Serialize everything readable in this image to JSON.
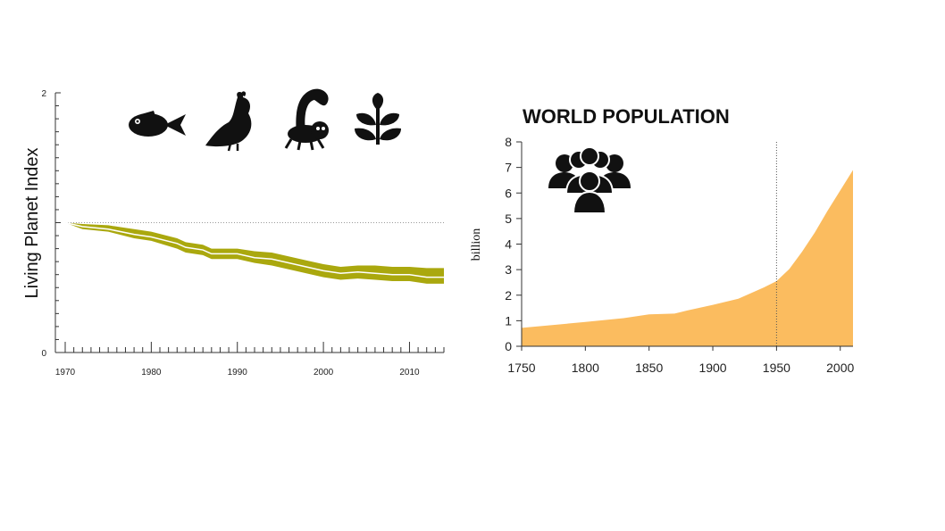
{
  "chart_data": [
    {
      "type": "area",
      "title": "",
      "ylabel": "Living Planet Index",
      "xlabel": "",
      "xlim": [
        1970,
        2014
      ],
      "ylim": [
        0,
        2
      ],
      "x_ticks": [
        1970,
        1980,
        1990,
        2000,
        2010
      ],
      "y_ticks": [
        0,
        2
      ],
      "baseline": 1,
      "grid": false,
      "icons": [
        "fish-icon",
        "quail-icon",
        "lemur-icon",
        "plant-icon"
      ],
      "band_color": "#aaa80e",
      "line_color": "#ffffff",
      "x": [
        1970,
        1972,
        1975,
        1978,
        1980,
        1983,
        1984,
        1986,
        1987,
        1988,
        1990,
        1992,
        1994,
        1996,
        1998,
        2000,
        2002,
        2004,
        2006,
        2008,
        2010,
        2012,
        2014
      ],
      "index": [
        1.0,
        0.97,
        0.95,
        0.91,
        0.89,
        0.84,
        0.81,
        0.79,
        0.76,
        0.76,
        0.76,
        0.73,
        0.72,
        0.69,
        0.66,
        0.63,
        0.61,
        0.62,
        0.61,
        0.6,
        0.6,
        0.58,
        0.58
      ],
      "upper": [
        1.0,
        0.99,
        0.98,
        0.95,
        0.93,
        0.88,
        0.85,
        0.83,
        0.8,
        0.8,
        0.8,
        0.78,
        0.77,
        0.74,
        0.71,
        0.68,
        0.66,
        0.67,
        0.67,
        0.66,
        0.66,
        0.65,
        0.65
      ],
      "lower": [
        1.0,
        0.95,
        0.93,
        0.88,
        0.86,
        0.8,
        0.77,
        0.75,
        0.72,
        0.72,
        0.72,
        0.69,
        0.67,
        0.64,
        0.61,
        0.58,
        0.56,
        0.57,
        0.56,
        0.55,
        0.55,
        0.53,
        0.53
      ]
    },
    {
      "type": "area",
      "title": "WORLD POPULATION",
      "ylabel": "billion",
      "xlabel": "",
      "xlim": [
        1750,
        2010
      ],
      "ylim": [
        0,
        8
      ],
      "x_ticks": [
        1750,
        1800,
        1850,
        1900,
        1950,
        2000
      ],
      "y_ticks": [
        0,
        1,
        2,
        3,
        4,
        5,
        6,
        7,
        8
      ],
      "marker_year": 1950,
      "grid": false,
      "icons": [
        "crowd-icon"
      ],
      "fill_color": "#fbbc5f",
      "x": [
        1750,
        1800,
        1830,
        1850,
        1870,
        1880,
        1900,
        1920,
        1940,
        1950,
        1960,
        1970,
        1980,
        1990,
        2000,
        2010
      ],
      "values": [
        0.72,
        0.95,
        1.1,
        1.25,
        1.28,
        1.4,
        1.62,
        1.86,
        2.3,
        2.55,
        3.02,
        3.7,
        4.45,
        5.3,
        6.1,
        6.9
      ]
    }
  ]
}
